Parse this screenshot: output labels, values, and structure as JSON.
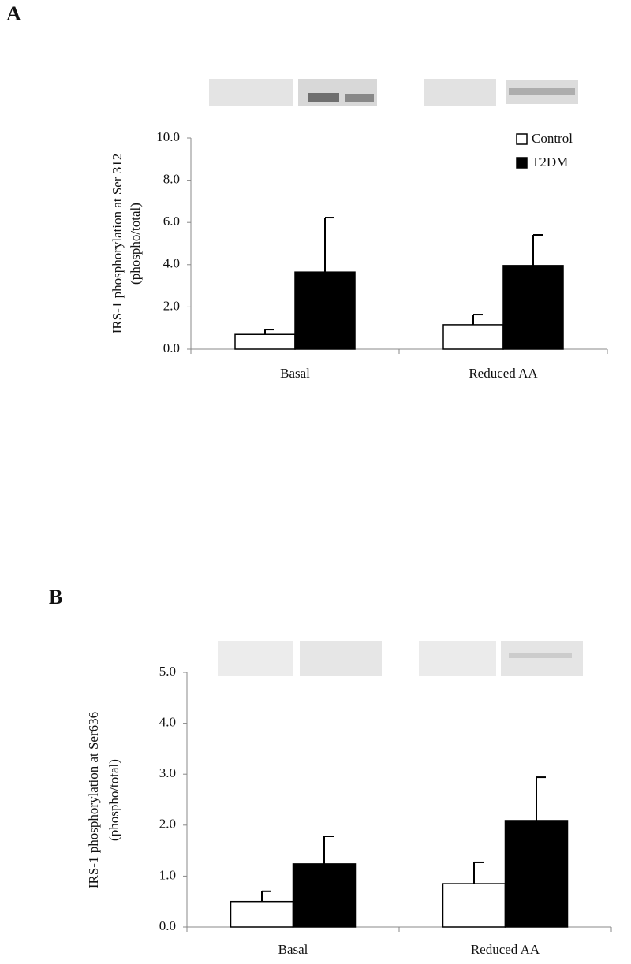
{
  "chart_data": [
    {
      "type": "bar",
      "panel": "A",
      "ylabel": [
        "IRS-1 phosphorylation at Ser 312",
        "(phospho/total)"
      ],
      "categories": [
        "Basal",
        "Reduced AA"
      ],
      "series": [
        {
          "name": "Control",
          "color": "#ffffff",
          "values": [
            0.7,
            1.16
          ],
          "errors": [
            0.23,
            0.48
          ]
        },
        {
          "name": "T2DM",
          "color": "#000000",
          "values": [
            3.65,
            3.96
          ],
          "errors": [
            2.58,
            1.45
          ]
        }
      ],
      "ylim": [
        0,
        10
      ],
      "yticks": [
        {
          "value": 0,
          "label": "0.0"
        },
        {
          "value": 2,
          "label": "2.0"
        },
        {
          "value": 4,
          "label": "4.0"
        },
        {
          "value": 6,
          "label": "6.0"
        },
        {
          "value": 8,
          "label": "8.0"
        },
        {
          "value": 10,
          "label": "10.0"
        }
      ],
      "legend": "upper right"
    },
    {
      "type": "bar",
      "panel": "B",
      "ylabel": [
        "IRS-1 phosphorylation at Ser636",
        "(phospho/total)"
      ],
      "categories": [
        "Basal",
        "Reduced AA"
      ],
      "series": [
        {
          "color": "#ffffff",
          "values": [
            0.5,
            0.85
          ],
          "errors": [
            0.2,
            0.42
          ]
        },
        {
          "color": "#000000",
          "values": [
            1.24,
            2.09
          ],
          "errors": [
            0.54,
            0.85
          ]
        }
      ],
      "ylim": [
        0,
        5
      ],
      "yticks": [
        {
          "value": 0,
          "label": "0.0"
        },
        {
          "value": 1,
          "label": "1.0"
        },
        {
          "value": 2,
          "label": "2.0"
        },
        {
          "value": 3,
          "label": "3.0"
        },
        {
          "value": 4,
          "label": "4.0"
        },
        {
          "value": 5,
          "label": "5.0"
        }
      ]
    }
  ]
}
